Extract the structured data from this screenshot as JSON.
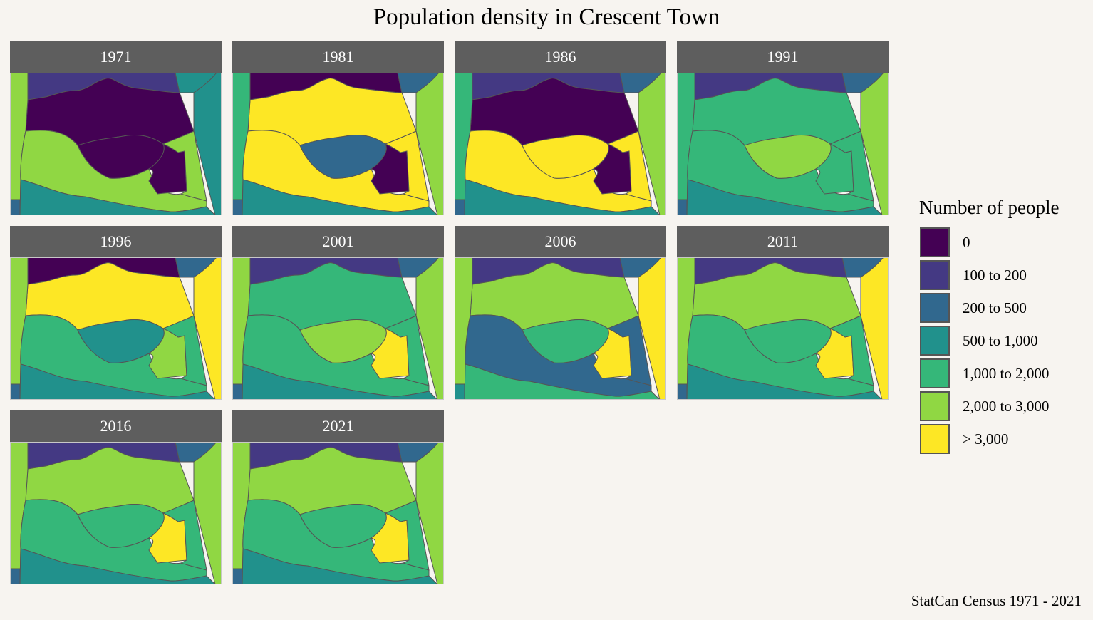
{
  "title": "Population density in Crescent Town",
  "caption": "StatCan Census 1971 - 2021",
  "legend": {
    "title": "Number of people",
    "items": [
      {
        "label": "0",
        "color": "#440154"
      },
      {
        "label": "100 to 200",
        "color": "#443983"
      },
      {
        "label": "200 to 500",
        "color": "#31688e"
      },
      {
        "label": "500 to 1,000",
        "color": "#21918c"
      },
      {
        "label": "1,000 to 2,000",
        "color": "#35b779"
      },
      {
        "label": "2,000 to 3,000",
        "color": "#90d743"
      },
      {
        "label": "> 3,000",
        "color": "#fde725"
      }
    ]
  },
  "region_order": [
    "north-strip",
    "northeast-corner",
    "upper-central",
    "east-strip",
    "west-strip",
    "middle-west",
    "inner-crescent",
    "crescent-block",
    "south-central",
    "south-band",
    "southwest-corner"
  ],
  "panels": [
    {
      "year": "1971",
      "classes": [
        1,
        3,
        0,
        3,
        5,
        5,
        0,
        0,
        5,
        3,
        2
      ]
    },
    {
      "year": "1981",
      "classes": [
        0,
        2,
        6,
        5,
        4,
        6,
        2,
        0,
        6,
        3,
        2
      ]
    },
    {
      "year": "1986",
      "classes": [
        1,
        2,
        0,
        5,
        4,
        6,
        6,
        0,
        6,
        3,
        2
      ]
    },
    {
      "year": "1991",
      "classes": [
        1,
        2,
        4,
        5,
        4,
        4,
        5,
        4,
        4,
        3,
        2
      ]
    },
    {
      "year": "1996",
      "classes": [
        0,
        2,
        6,
        6,
        5,
        4,
        3,
        5,
        4,
        3,
        2
      ]
    },
    {
      "year": "2001",
      "classes": [
        1,
        2,
        4,
        5,
        5,
        4,
        5,
        6,
        4,
        3,
        2
      ]
    },
    {
      "year": "2006",
      "classes": [
        1,
        2,
        5,
        6,
        5,
        2,
        4,
        6,
        2,
        4,
        3
      ]
    },
    {
      "year": "2011",
      "classes": [
        1,
        2,
        5,
        6,
        5,
        4,
        4,
        6,
        4,
        3,
        2
      ]
    },
    {
      "year": "2016",
      "classes": [
        1,
        2,
        5,
        5,
        5,
        4,
        4,
        6,
        4,
        3,
        2
      ]
    },
    {
      "year": "2021",
      "classes": [
        1,
        2,
        5,
        5,
        5,
        4,
        4,
        6,
        4,
        3,
        2
      ]
    }
  ]
}
